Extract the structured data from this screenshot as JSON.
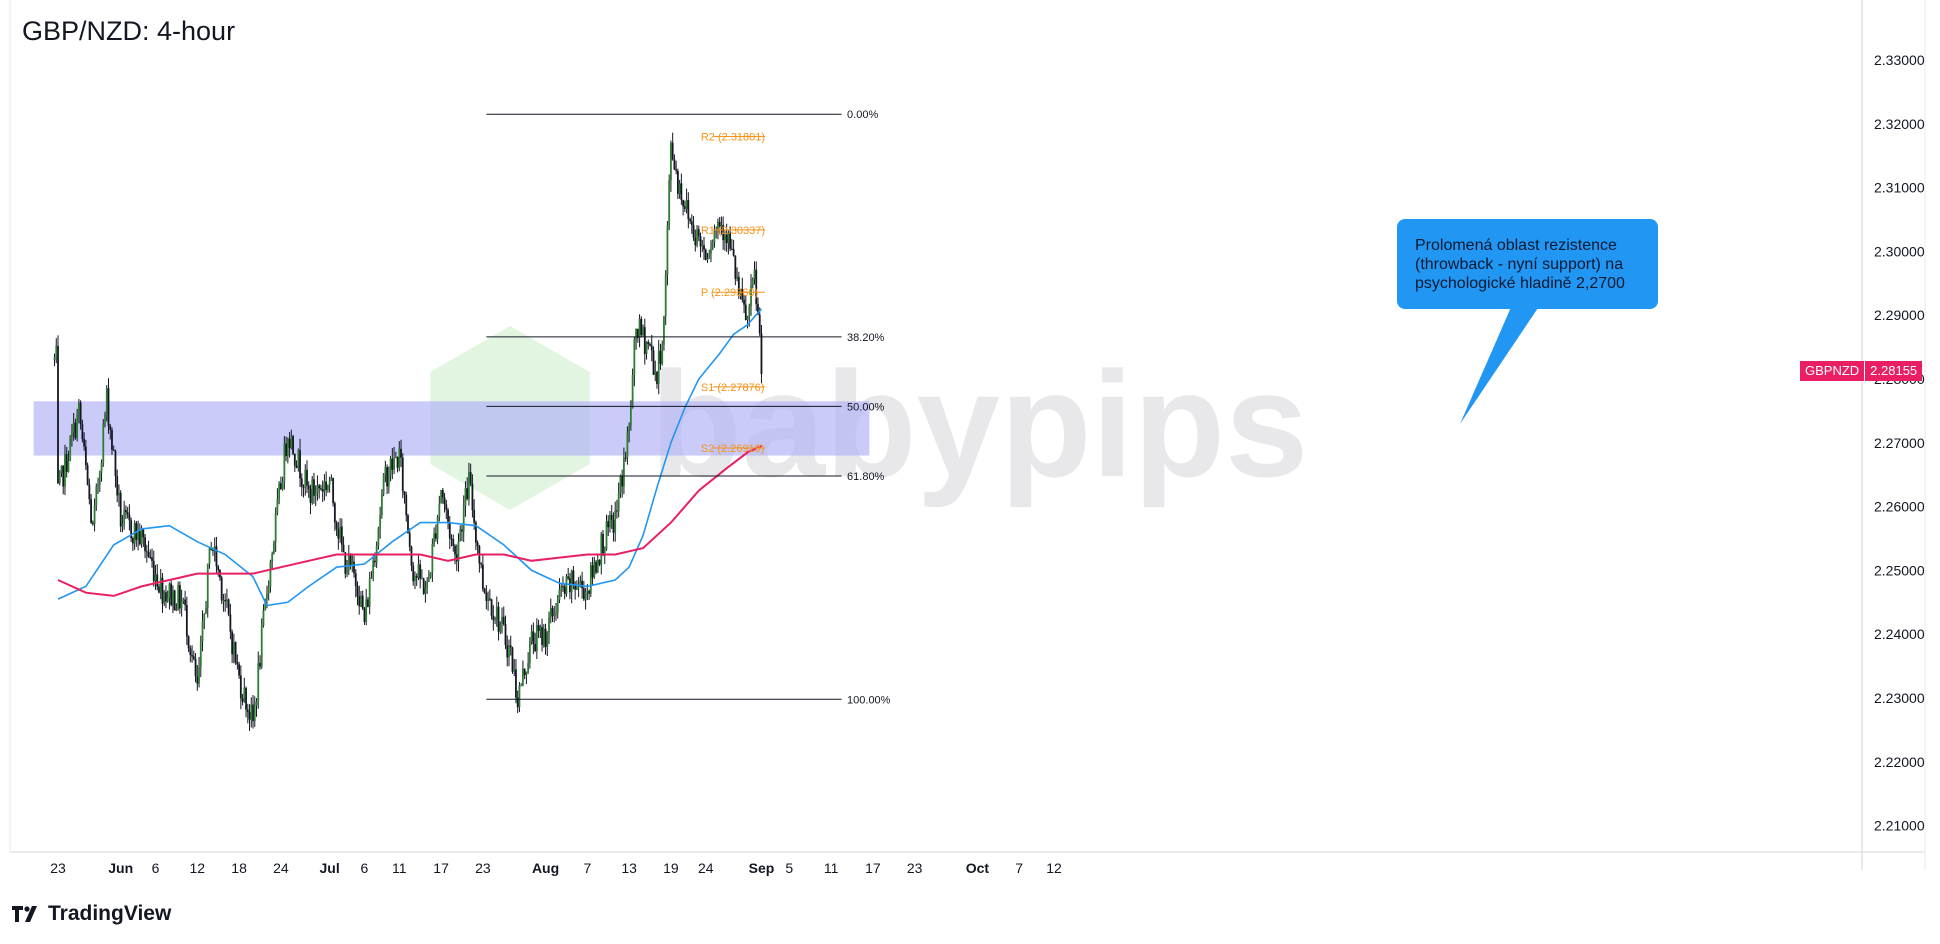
{
  "chart_title": "GBP/NZD: 4-hour",
  "brand": "TradingView",
  "watermark": "babypips",
  "callout": {
    "lines": [
      "Prolomená oblast rezistence",
      "(throwback - nyní support) na",
      "psychologické hladině 2,2700"
    ]
  },
  "price_badge": {
    "symbol": "GBPNZD",
    "value": "2.28155"
  },
  "colors": {
    "sma_fast": "#2196f3",
    "sma_slow": "#e91e63",
    "pivot": "#f7931a",
    "zone": "#b3b5f5",
    "candle_up": "#2e7d32",
    "candle_down": "#131722",
    "callout": "#2196f3"
  },
  "chart_data": {
    "type": "candlestick",
    "symbol": "GBPNZD",
    "timeframe": "4-hour",
    "ylim": [
      2.205,
      2.337
    ],
    "y_ticks": [
      "2.21000",
      "2.22000",
      "2.23000",
      "2.24000",
      "2.25000",
      "2.26000",
      "2.27000",
      "2.28000",
      "2.29000",
      "2.30000",
      "2.31000",
      "2.32000",
      "2.33000"
    ],
    "x_ticks": [
      {
        "label": "23",
        "day": 0
      },
      {
        "label": "Jun",
        "day": 9
      },
      {
        "label": "6",
        "day": 14
      },
      {
        "label": "12",
        "day": 20
      },
      {
        "label": "18",
        "day": 26
      },
      {
        "label": "24",
        "day": 32
      },
      {
        "label": "Jul",
        "day": 39
      },
      {
        "label": "6",
        "day": 44
      },
      {
        "label": "11",
        "day": 49
      },
      {
        "label": "17",
        "day": 55
      },
      {
        "label": "23",
        "day": 61
      },
      {
        "label": "Aug",
        "day": 70
      },
      {
        "label": "7",
        "day": 76
      },
      {
        "label": "13",
        "day": 82
      },
      {
        "label": "19",
        "day": 88
      },
      {
        "label": "24",
        "day": 93
      },
      {
        "label": "Sep",
        "day": 101
      },
      {
        "label": "5",
        "day": 105
      },
      {
        "label": "11",
        "day": 111
      },
      {
        "label": "17",
        "day": 117
      },
      {
        "label": "23",
        "day": 123
      },
      {
        "label": "Oct",
        "day": 132
      },
      {
        "label": "7",
        "day": 138
      },
      {
        "label": "12",
        "day": 143
      }
    ],
    "price_path": [
      [
        0,
        2.262
      ],
      [
        3,
        2.275
      ],
      [
        5,
        2.256
      ],
      [
        7,
        2.277
      ],
      [
        9,
        2.258
      ],
      [
        12,
        2.255
      ],
      [
        15,
        2.247
      ],
      [
        18,
        2.245
      ],
      [
        20,
        2.231
      ],
      [
        22,
        2.255
      ],
      [
        24,
        2.245
      ],
      [
        26,
        2.233
      ],
      [
        28,
        2.226
      ],
      [
        30,
        2.247
      ],
      [
        33,
        2.272
      ],
      [
        36,
        2.262
      ],
      [
        39,
        2.264
      ],
      [
        41,
        2.252
      ],
      [
        43,
        2.248
      ],
      [
        44,
        2.242
      ],
      [
        47,
        2.265
      ],
      [
        49,
        2.268
      ],
      [
        51,
        2.25
      ],
      [
        53,
        2.247
      ],
      [
        55,
        2.263
      ],
      [
        57,
        2.252
      ],
      [
        59,
        2.264
      ],
      [
        61,
        2.248
      ],
      [
        63,
        2.243
      ],
      [
        65,
        2.237
      ],
      [
        66,
        2.23
      ],
      [
        68,
        2.239
      ],
      [
        70,
        2.24
      ],
      [
        72,
        2.246
      ],
      [
        74,
        2.248
      ],
      [
        76,
        2.247
      ],
      [
        78,
        2.254
      ],
      [
        80,
        2.258
      ],
      [
        81,
        2.265
      ],
      [
        82,
        2.272
      ],
      [
        83,
        2.288
      ],
      [
        85,
        2.285
      ],
      [
        86,
        2.28
      ],
      [
        87,
        2.289
      ],
      [
        88,
        2.317
      ],
      [
        89,
        2.311
      ],
      [
        91,
        2.304
      ],
      [
        93,
        2.3
      ],
      [
        95,
        2.305
      ],
      [
        96,
        2.303
      ],
      [
        97,
        2.298
      ],
      [
        98,
        2.292
      ],
      [
        99,
        2.289
      ],
      [
        100,
        2.296
      ],
      [
        101,
        2.283
      ]
    ],
    "series": [
      {
        "name": "SMA fast",
        "points": [
          [
            0,
            2.2455
          ],
          [
            4,
            2.2475
          ],
          [
            8,
            2.254
          ],
          [
            12,
            2.2565
          ],
          [
            16,
            2.257
          ],
          [
            20,
            2.2545
          ],
          [
            24,
            2.2525
          ],
          [
            28,
            2.249
          ],
          [
            30,
            2.2445
          ],
          [
            33,
            2.245
          ],
          [
            36,
            2.2475
          ],
          [
            40,
            2.2505
          ],
          [
            44,
            2.251
          ],
          [
            48,
            2.2545
          ],
          [
            52,
            2.2575
          ],
          [
            56,
            2.2575
          ],
          [
            60,
            2.257
          ],
          [
            64,
            2.254
          ],
          [
            68,
            2.25
          ],
          [
            72,
            2.248
          ],
          [
            76,
            2.2475
          ],
          [
            80,
            2.2485
          ],
          [
            82,
            2.2505
          ],
          [
            84,
            2.2555
          ],
          [
            86,
            2.263
          ],
          [
            88,
            2.27
          ],
          [
            90,
            2.2755
          ],
          [
            92,
            2.28
          ],
          [
            95,
            2.284
          ],
          [
            97,
            2.287
          ],
          [
            99,
            2.2885
          ],
          [
            101,
            2.291
          ]
        ]
      },
      {
        "name": "SMA slow",
        "points": [
          [
            0,
            2.2485
          ],
          [
            4,
            2.2465
          ],
          [
            8,
            2.246
          ],
          [
            12,
            2.2475
          ],
          [
            16,
            2.2485
          ],
          [
            20,
            2.2495
          ],
          [
            24,
            2.2495
          ],
          [
            28,
            2.2495
          ],
          [
            32,
            2.2505
          ],
          [
            36,
            2.2515
          ],
          [
            40,
            2.2525
          ],
          [
            44,
            2.2525
          ],
          [
            48,
            2.2525
          ],
          [
            52,
            2.2525
          ],
          [
            56,
            2.2515
          ],
          [
            60,
            2.2525
          ],
          [
            64,
            2.2525
          ],
          [
            68,
            2.2515
          ],
          [
            72,
            2.252
          ],
          [
            76,
            2.2525
          ],
          [
            80,
            2.2525
          ],
          [
            84,
            2.2535
          ],
          [
            88,
            2.2575
          ],
          [
            92,
            2.2625
          ],
          [
            96,
            2.266
          ],
          [
            99,
            2.2685
          ],
          [
            101,
            2.2695
          ]
        ]
      }
    ],
    "fibonacci": {
      "from_day": 61.5,
      "to_day": 112.5,
      "label_day": 113,
      "levels": [
        {
          "label": "0.00%",
          "price": 2.3215
        },
        {
          "label": "38.20%",
          "price": 2.2866
        },
        {
          "label": "50.00%",
          "price": 2.2757
        },
        {
          "label": "61.80%",
          "price": 2.2648
        },
        {
          "label": "100.00%",
          "price": 2.2298
        }
      ]
    },
    "pivots": {
      "from_day": 94,
      "to_day": 101.5,
      "label_day": 92.3,
      "levels": [
        {
          "label": "R2 (2.31801)",
          "price": 2.31801
        },
        {
          "label": "R1 (2.30337)",
          "price": 2.30337
        },
        {
          "label": "P (2.29360)",
          "price": 2.2936
        },
        {
          "label": "S1 (2.27876)",
          "price": 2.27876
        },
        {
          "label": "S2 (2.26919)",
          "price": 2.26919
        }
      ]
    },
    "zone": {
      "price_low": 2.268,
      "price_high": 2.2765,
      "from_day": -3.5,
      "to_day": 116.5
    },
    "last_price": 2.28155
  }
}
